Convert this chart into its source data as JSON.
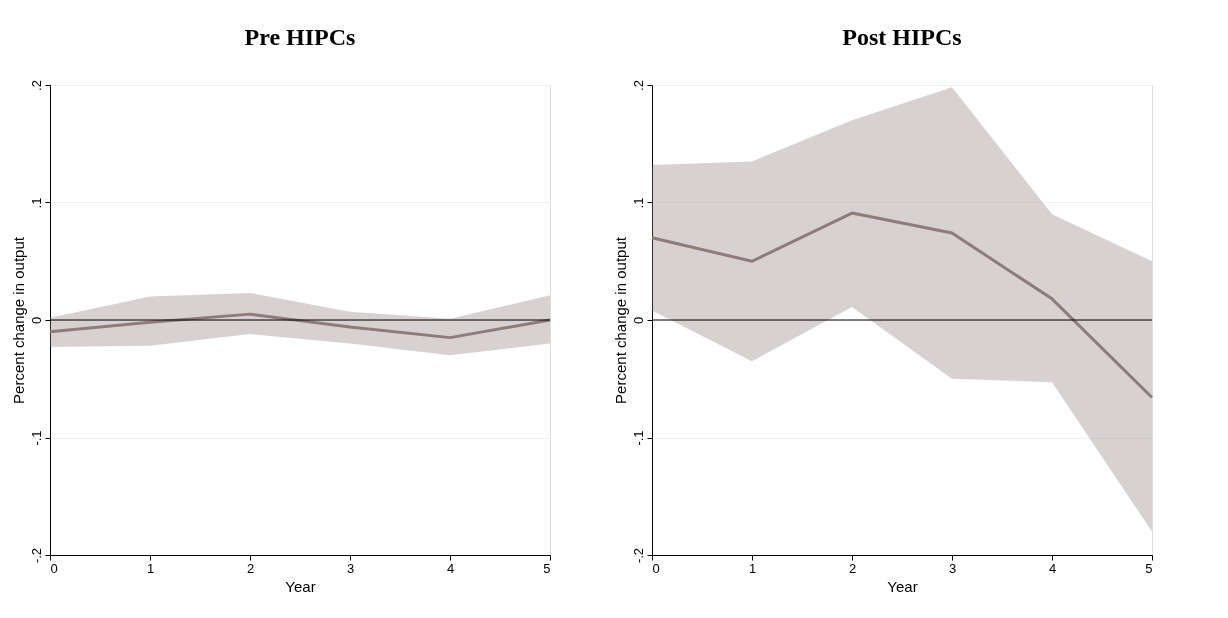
{
  "chart_data": [
    {
      "type": "line",
      "title": "Pre HIPCs",
      "xlabel": "Year",
      "ylabel": "Percent change in output",
      "x": [
        0,
        1,
        2,
        3,
        4,
        5
      ],
      "series": [
        {
          "color": "#8c7d7a",
          "values": [
            -0.01,
            -0.002,
            0.005,
            -0.006,
            -0.015,
            0
          ],
          "lower": [
            -0.023,
            -0.022,
            -0.012,
            -0.02,
            -0.03,
            -0.02
          ],
          "upper": [
            0.002,
            0.02,
            0.023,
            0.007,
            0.001,
            0.021
          ]
        }
      ],
      "xlim": [
        0,
        5
      ],
      "xticks": [
        0,
        1,
        2,
        3,
        4,
        5
      ],
      "ylim": [
        -0.2,
        0.2
      ],
      "yticks": [
        {
          "value": -0.2,
          "label": "-.2"
        },
        {
          "value": -0.1,
          "label": "-.1"
        },
        {
          "value": 0,
          "label": "0"
        },
        {
          "value": 0.1,
          "label": ".1"
        },
        {
          "value": 0.2,
          "label": ".2"
        }
      ],
      "ref_lines": [
        {
          "axis": "y",
          "value": 0,
          "color": "#000000"
        }
      ],
      "grid": "y"
    },
    {
      "type": "line",
      "title": "Post HIPCs",
      "xlabel": "Year",
      "ylabel": "Percent change in output",
      "x": [
        0,
        1,
        2,
        3,
        4,
        5
      ],
      "series": [
        {
          "color": "#8c7d7a",
          "values": [
            0.07,
            0.05,
            0.091,
            0.074,
            0.018,
            -0.066
          ],
          "lower": [
            0.008,
            -0.035,
            0.011,
            -0.05,
            -0.053,
            -0.18
          ],
          "upper": [
            0.132,
            0.135,
            0.17,
            0.198,
            0.09,
            0.05
          ]
        }
      ],
      "xlim": [
        0,
        5
      ],
      "xticks": [
        0,
        1,
        2,
        3,
        4,
        5
      ],
      "ylim": [
        -0.2,
        0.2
      ],
      "yticks": [
        {
          "value": -0.2,
          "label": "-.2"
        },
        {
          "value": -0.1,
          "label": "-.1"
        },
        {
          "value": 0,
          "label": "0"
        },
        {
          "value": 0.1,
          "label": ".1"
        },
        {
          "value": 0.2,
          "label": ".2"
        }
      ],
      "ref_lines": [
        {
          "axis": "y",
          "value": 0,
          "color": "#000000"
        }
      ],
      "grid": "y"
    }
  ]
}
